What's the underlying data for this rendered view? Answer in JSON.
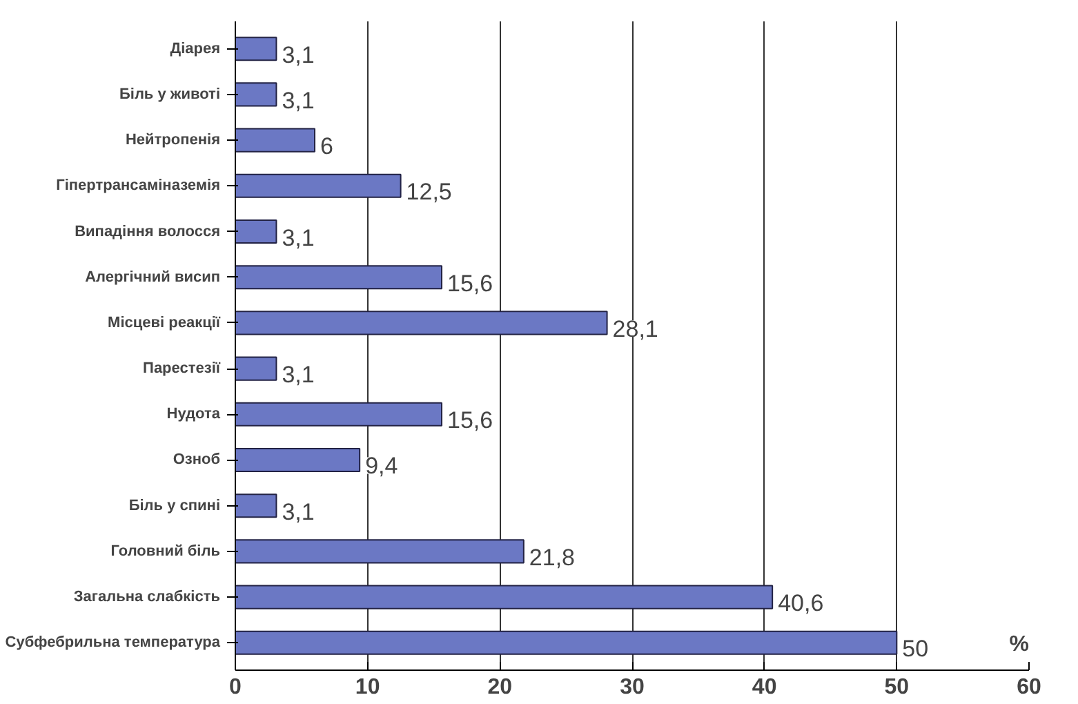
{
  "chart_data": {
    "type": "bar",
    "orientation": "horizontal",
    "categories": [
      "Діарея",
      "Біль у животі",
      "Нейтропенія",
      "Гіпертрансаміназемія",
      "Випадіння волосся",
      "Алергічний висип",
      "Місцеві реакції",
      "Парестезії",
      "Нудота",
      "Озноб",
      "Біль у спині",
      "Головний біль",
      "Загальна слабкість",
      "Субфебрильна температура"
    ],
    "values": [
      3.1,
      3.1,
      6,
      12.5,
      3.1,
      15.6,
      28.1,
      3.1,
      15.6,
      9.4,
      3.1,
      21.8,
      40.6,
      50
    ],
    "value_labels": [
      "3,1",
      "3,1",
      "6",
      "12,5",
      "3,1",
      "15,6",
      "28,1",
      "3,1",
      "15,6",
      "9,4",
      "3,1",
      "21,8",
      "40,6",
      "50"
    ],
    "color": "#6b78c4",
    "xlim": [
      0,
      60
    ],
    "xticks": [
      0,
      10,
      20,
      30,
      40,
      50,
      60
    ],
    "grid": "x",
    "annotations": [
      "%"
    ]
  }
}
